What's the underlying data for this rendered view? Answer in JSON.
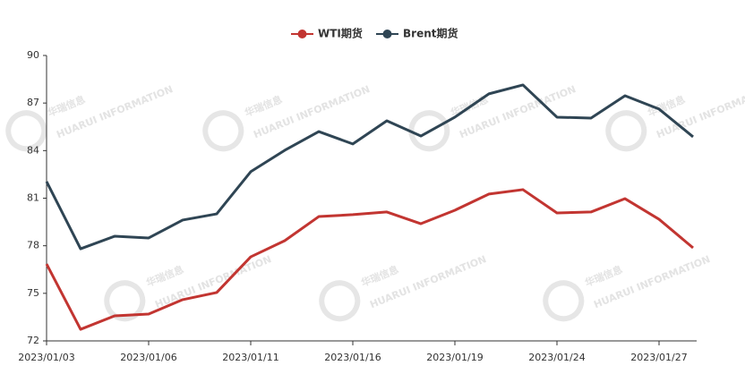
{
  "chart_data": {
    "type": "line",
    "watermark": {
      "title": "华瑞信息",
      "subtitle": "HUARUI INFORMATION"
    },
    "categories": [
      "2023/01/03",
      null,
      null,
      "2023/01/06",
      null,
      null,
      "2023/01/11",
      null,
      null,
      "2023/01/16",
      null,
      null,
      "2023/01/19",
      null,
      null,
      "2023/01/24",
      null,
      null,
      "2023/01/27",
      null
    ],
    "series": [
      {
        "name": "WTI期货",
        "color": "#c23531",
        "values": [
          76.85,
          72.73,
          73.58,
          73.69,
          74.6,
          75.05,
          77.3,
          78.32,
          79.84,
          79.96,
          80.13,
          79.39,
          80.24,
          81.26,
          81.54,
          80.07,
          80.13,
          80.97,
          79.67,
          77.87
        ]
      },
      {
        "name": "Brent期货",
        "color": "#2f4554",
        "values": [
          82.05,
          77.81,
          78.6,
          78.49,
          79.62,
          80.01,
          82.67,
          84.02,
          85.2,
          84.42,
          85.88,
          84.92,
          86.11,
          87.58,
          88.14,
          86.11,
          86.05,
          87.46,
          86.62,
          84.87
        ]
      }
    ],
    "ylim": [
      72,
      90
    ],
    "yticks": [
      72,
      75,
      78,
      81,
      84,
      87,
      90
    ],
    "grid": false,
    "legend": "top"
  }
}
